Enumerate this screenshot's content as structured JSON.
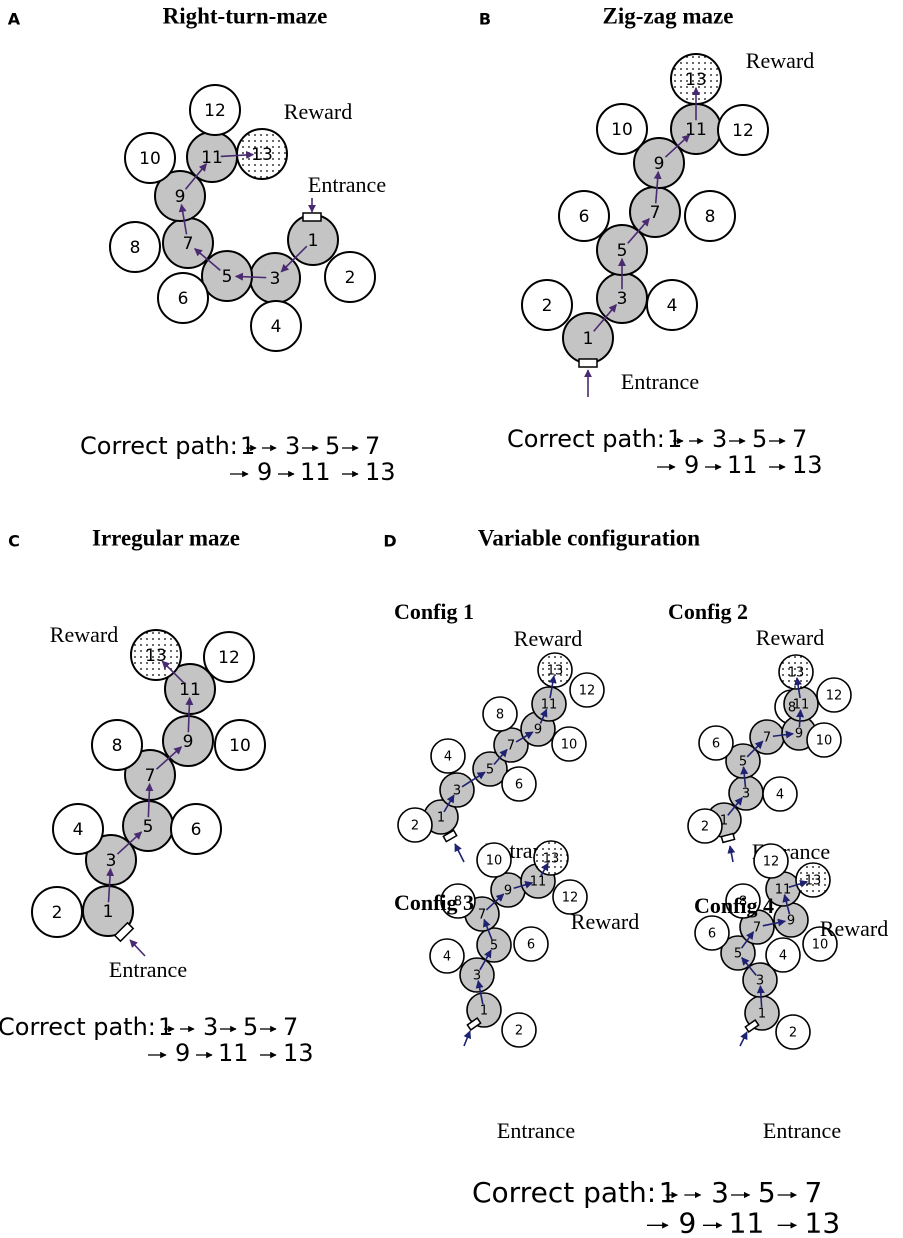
{
  "panels": [
    {
      "letter": "A",
      "title": "Right-turn-maze",
      "reward": "Reward",
      "entrance": "Entrance",
      "nodes": [
        "1",
        "2",
        "3",
        "4",
        "5",
        "6",
        "7",
        "8",
        "9",
        "10",
        "11",
        "12",
        "13"
      ],
      "path": {
        "label": "Correct path:",
        "steps": [
          "1",
          "3",
          "5",
          "7",
          "9",
          "11",
          "13"
        ]
      }
    },
    {
      "letter": "B",
      "title": "Zig-zag maze",
      "reward": "Reward",
      "entrance": "Entrance",
      "nodes": [
        "1",
        "2",
        "3",
        "4",
        "5",
        "6",
        "7",
        "8",
        "9",
        "10",
        "11",
        "12",
        "13"
      ],
      "path": {
        "label": "Correct path:",
        "steps": [
          "1",
          "3",
          "5",
          "7",
          "9",
          "11",
          "13"
        ]
      }
    },
    {
      "letter": "C",
      "title": "Irregular maze",
      "reward": "Reward",
      "entrance": "Entrance",
      "nodes": [
        "1",
        "2",
        "3",
        "4",
        "5",
        "6",
        "7",
        "8",
        "9",
        "10",
        "11",
        "12",
        "13"
      ],
      "path": {
        "label": "Correct path:",
        "steps": [
          "1",
          "3",
          "5",
          "7",
          "9",
          "11",
          "13"
        ]
      }
    },
    {
      "letter": "D",
      "title": "Variable configuration",
      "configs": [
        {
          "name": "Config 1",
          "reward": "Reward",
          "entrance": "Entrance",
          "nodes": [
            "1",
            "2",
            "3",
            "4",
            "5",
            "6",
            "7",
            "8",
            "9",
            "10",
            "11",
            "12",
            "13"
          ]
        },
        {
          "name": "Config 2",
          "reward": "Reward",
          "entrance": "Entrance",
          "nodes": [
            "1",
            "2",
            "3",
            "4",
            "5",
            "6",
            "7",
            "8",
            "9",
            "10",
            "11",
            "12",
            "13"
          ]
        },
        {
          "name": "Config 3",
          "reward": "Reward",
          "entrance": "Entrance",
          "nodes": [
            "1",
            "2",
            "3",
            "4",
            "5",
            "6",
            "7",
            "8",
            "9",
            "10",
            "11",
            "12",
            "13"
          ]
        },
        {
          "name": "Config 4",
          "reward": "Reward",
          "entrance": "Entrance",
          "nodes": [
            "1",
            "2",
            "3",
            "4",
            "5",
            "6",
            "7",
            "8",
            "9",
            "10",
            "11",
            "12",
            "13"
          ]
        }
      ],
      "path": {
        "label": "Correct path:",
        "steps": [
          "1",
          "3",
          "5",
          "7",
          "9",
          "11",
          "13"
        ]
      }
    }
  ]
}
